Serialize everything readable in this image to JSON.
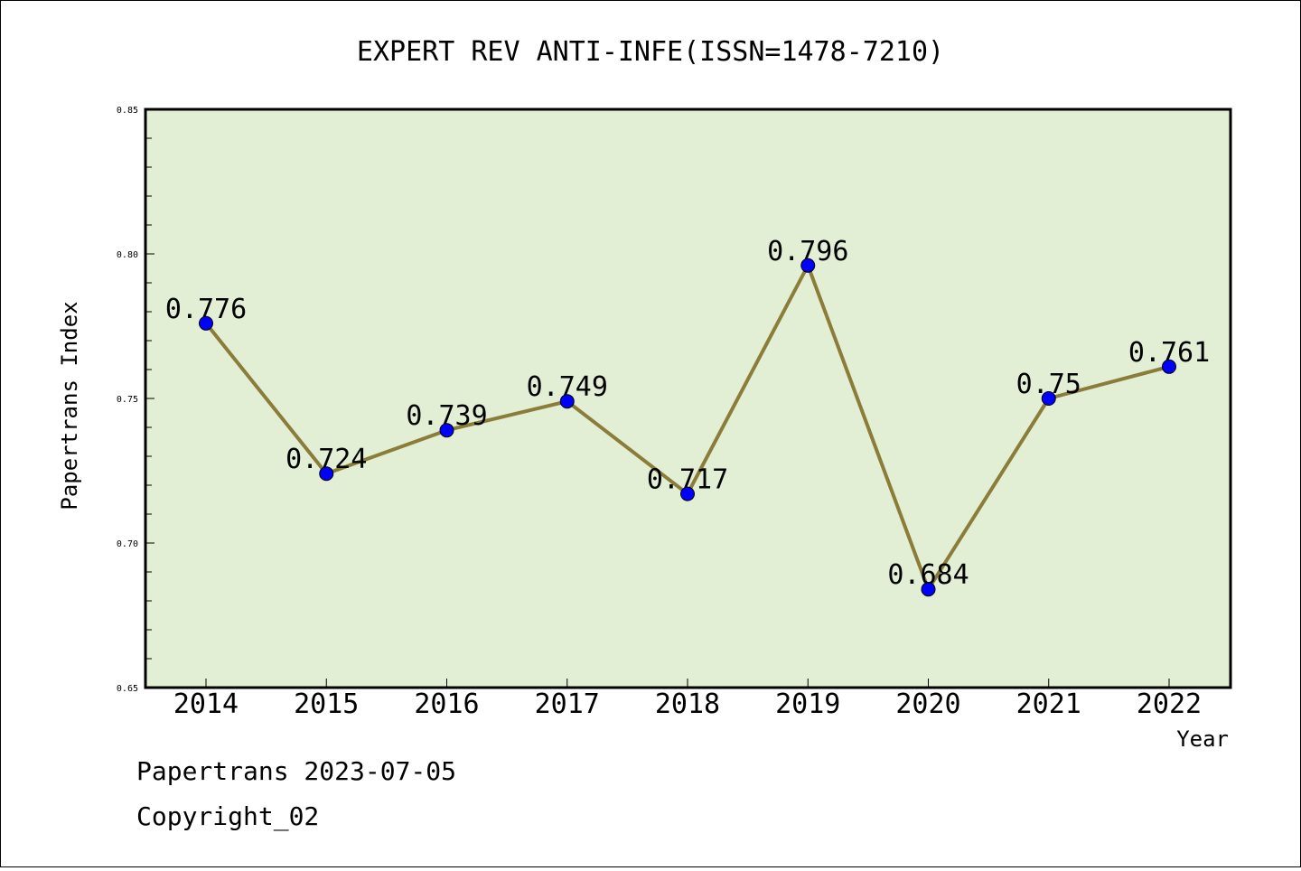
{
  "colors": {
    "plot_background": "#e2efd5",
    "line": "#8b7d39",
    "marker": "#0000ff",
    "axis": "#000000"
  },
  "chart_data": {
    "type": "line",
    "title": "EXPERT REV ANTI-INFE(ISSN=1478-7210)",
    "xlabel": "Year",
    "ylabel": "Papertrans Index",
    "categories": [
      "2014",
      "2015",
      "2016",
      "2017",
      "2018",
      "2019",
      "2020",
      "2021",
      "2022"
    ],
    "series": [
      {
        "values": [
          0.776,
          0.724,
          0.739,
          0.749,
          0.717,
          0.796,
          0.684,
          0.75,
          0.761
        ],
        "data_labels": [
          "0.776",
          "0.724",
          "0.739",
          "0.749",
          "0.717",
          "0.796",
          "0.684",
          "0.75",
          "0.761"
        ]
      }
    ],
    "ylim": [
      0.65,
      0.85
    ],
    "y_ticks": [
      "0.65",
      "0.70",
      "0.75",
      "0.80",
      "0.85"
    ],
    "grid": false,
    "legend": "none"
  },
  "footer": {
    "date_line": "Papertrans 2023-07-05",
    "copyright_line": "Copyright_02"
  }
}
